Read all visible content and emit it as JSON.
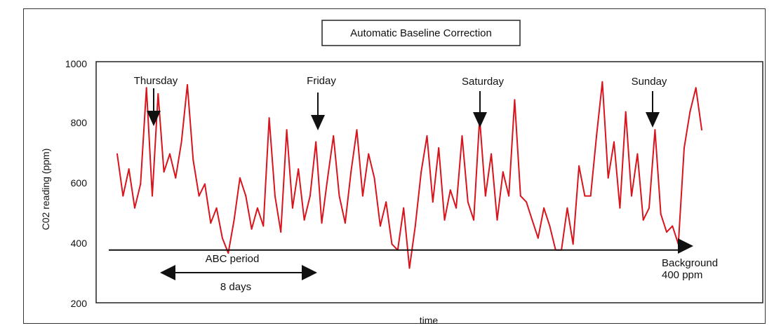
{
  "chart_data": {
    "type": "line",
    "title": "Automatic Baseline Correction",
    "xlabel": "time",
    "ylabel": "C02 reading (ppm)",
    "ylim": [
      200,
      1000
    ],
    "yticks": [
      "1000",
      "800",
      "600",
      "400",
      "200"
    ],
    "grid": false,
    "series_color": "#d8141c",
    "series": [
      {
        "x": [
          0,
          1,
          2,
          3,
          4,
          5,
          6,
          7,
          8,
          9,
          10,
          11,
          12,
          13,
          14,
          15,
          16,
          17,
          18,
          19,
          20,
          21,
          22,
          23,
          24,
          25,
          26,
          27,
          28,
          29,
          30,
          31,
          32,
          33,
          34,
          35,
          36,
          37,
          38,
          39,
          40,
          41,
          42,
          43,
          44,
          45,
          46,
          47,
          48,
          49,
          50,
          51,
          52,
          53,
          54,
          55,
          56,
          57,
          58,
          59,
          60,
          61,
          62,
          63,
          64,
          65,
          66,
          67,
          68,
          69,
          70,
          71,
          72,
          73,
          74,
          75,
          76,
          77,
          78,
          79,
          80,
          81,
          82,
          83,
          84,
          85,
          86,
          87,
          88,
          89,
          90,
          91,
          92,
          93,
          94,
          95,
          96,
          97,
          98,
          99,
          100
        ],
        "y": [
          700,
          560,
          650,
          520,
          600,
          920,
          560,
          900,
          640,
          700,
          620,
          740,
          930,
          680,
          560,
          600,
          470,
          520,
          420,
          370,
          480,
          620,
          560,
          450,
          520,
          460,
          820,
          560,
          440,
          780,
          520,
          650,
          480,
          560,
          740,
          470,
          620,
          760,
          560,
          470,
          640,
          780,
          560,
          700,
          620,
          460,
          540,
          400,
          380,
          520,
          320,
          460,
          640,
          760,
          540,
          720,
          480,
          580,
          520,
          760,
          540,
          480,
          820,
          560,
          700,
          480,
          640,
          560,
          880,
          560,
          540,
          480,
          420,
          520,
          460,
          380,
          380,
          520,
          400,
          660,
          560,
          560,
          760,
          940,
          620,
          740,
          520,
          840,
          560,
          700,
          480,
          520,
          780,
          500,
          440,
          460,
          400,
          720,
          840,
          920,
          780
        ]
      }
    ],
    "annotations": {
      "days": [
        "Thursday",
        "Friday",
        "Saturday",
        "Sunday"
      ],
      "period_label": "ABC period",
      "duration_label": "8 days",
      "background_label_line1": "Background",
      "background_label_line2": "400 ppm",
      "background_value": 380
    }
  }
}
